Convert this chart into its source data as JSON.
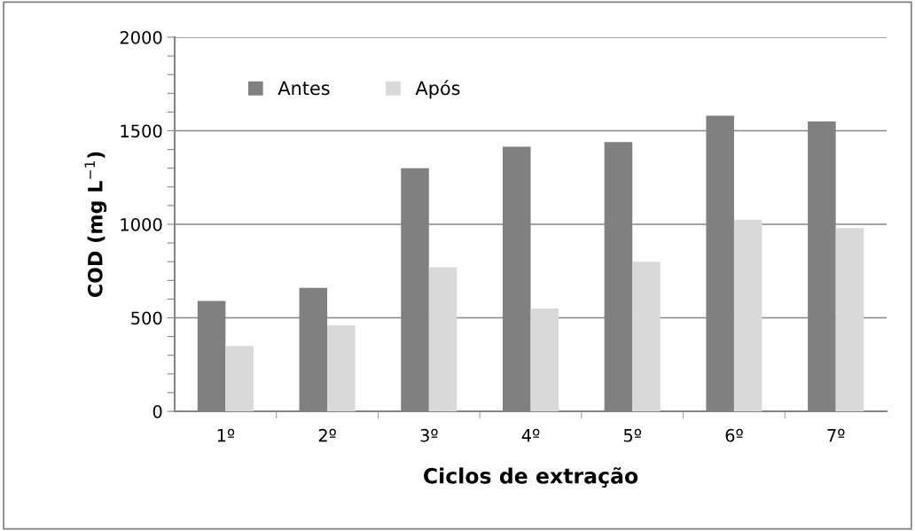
{
  "chart_data": {
    "type": "bar",
    "xlabel": "Ciclos de extração",
    "ylabel": "COD (mg L$^{−1}$)",
    "categories": [
      "1º",
      "2º",
      "3º",
      "4º",
      "5º",
      "6º",
      "7º"
    ],
    "series": [
      {
        "name": "Antes",
        "color": "#808080",
        "values": [
          590,
          660,
          1300,
          1415,
          1440,
          1580,
          1550
        ]
      },
      {
        "name": "Após",
        "color": "#d9d9d9",
        "values": [
          350,
          460,
          770,
          550,
          800,
          1025,
          980
        ]
      }
    ],
    "ylim": [
      0,
      2000
    ],
    "yticks": [
      0,
      {
        "value": 100,
        "label": null
      },
      {
        "value": 200,
        "label": null
      },
      {
        "value": 300,
        "label": null
      },
      {
        "value": 400,
        "label": null
      },
      500,
      {
        "value": 600,
        "label": null
      },
      {
        "value": 700,
        "label": null
      },
      {
        "value": 800,
        "label": null
      },
      {
        "value": 900,
        "label": null
      },
      1000,
      {
        "value": 1100,
        "label": null
      },
      {
        "value": 1200,
        "label": null
      },
      {
        "value": 1300,
        "label": null
      },
      {
        "value": 1400,
        "label": null
      },
      1500,
      {
        "value": 1600,
        "label": null
      },
      {
        "value": 1700,
        "label": null
      },
      {
        "value": 1800,
        "label": null
      },
      {
        "value": 1900,
        "label": null
      },
      2000
    ],
    "grid": "y",
    "legend": "top left"
  }
}
